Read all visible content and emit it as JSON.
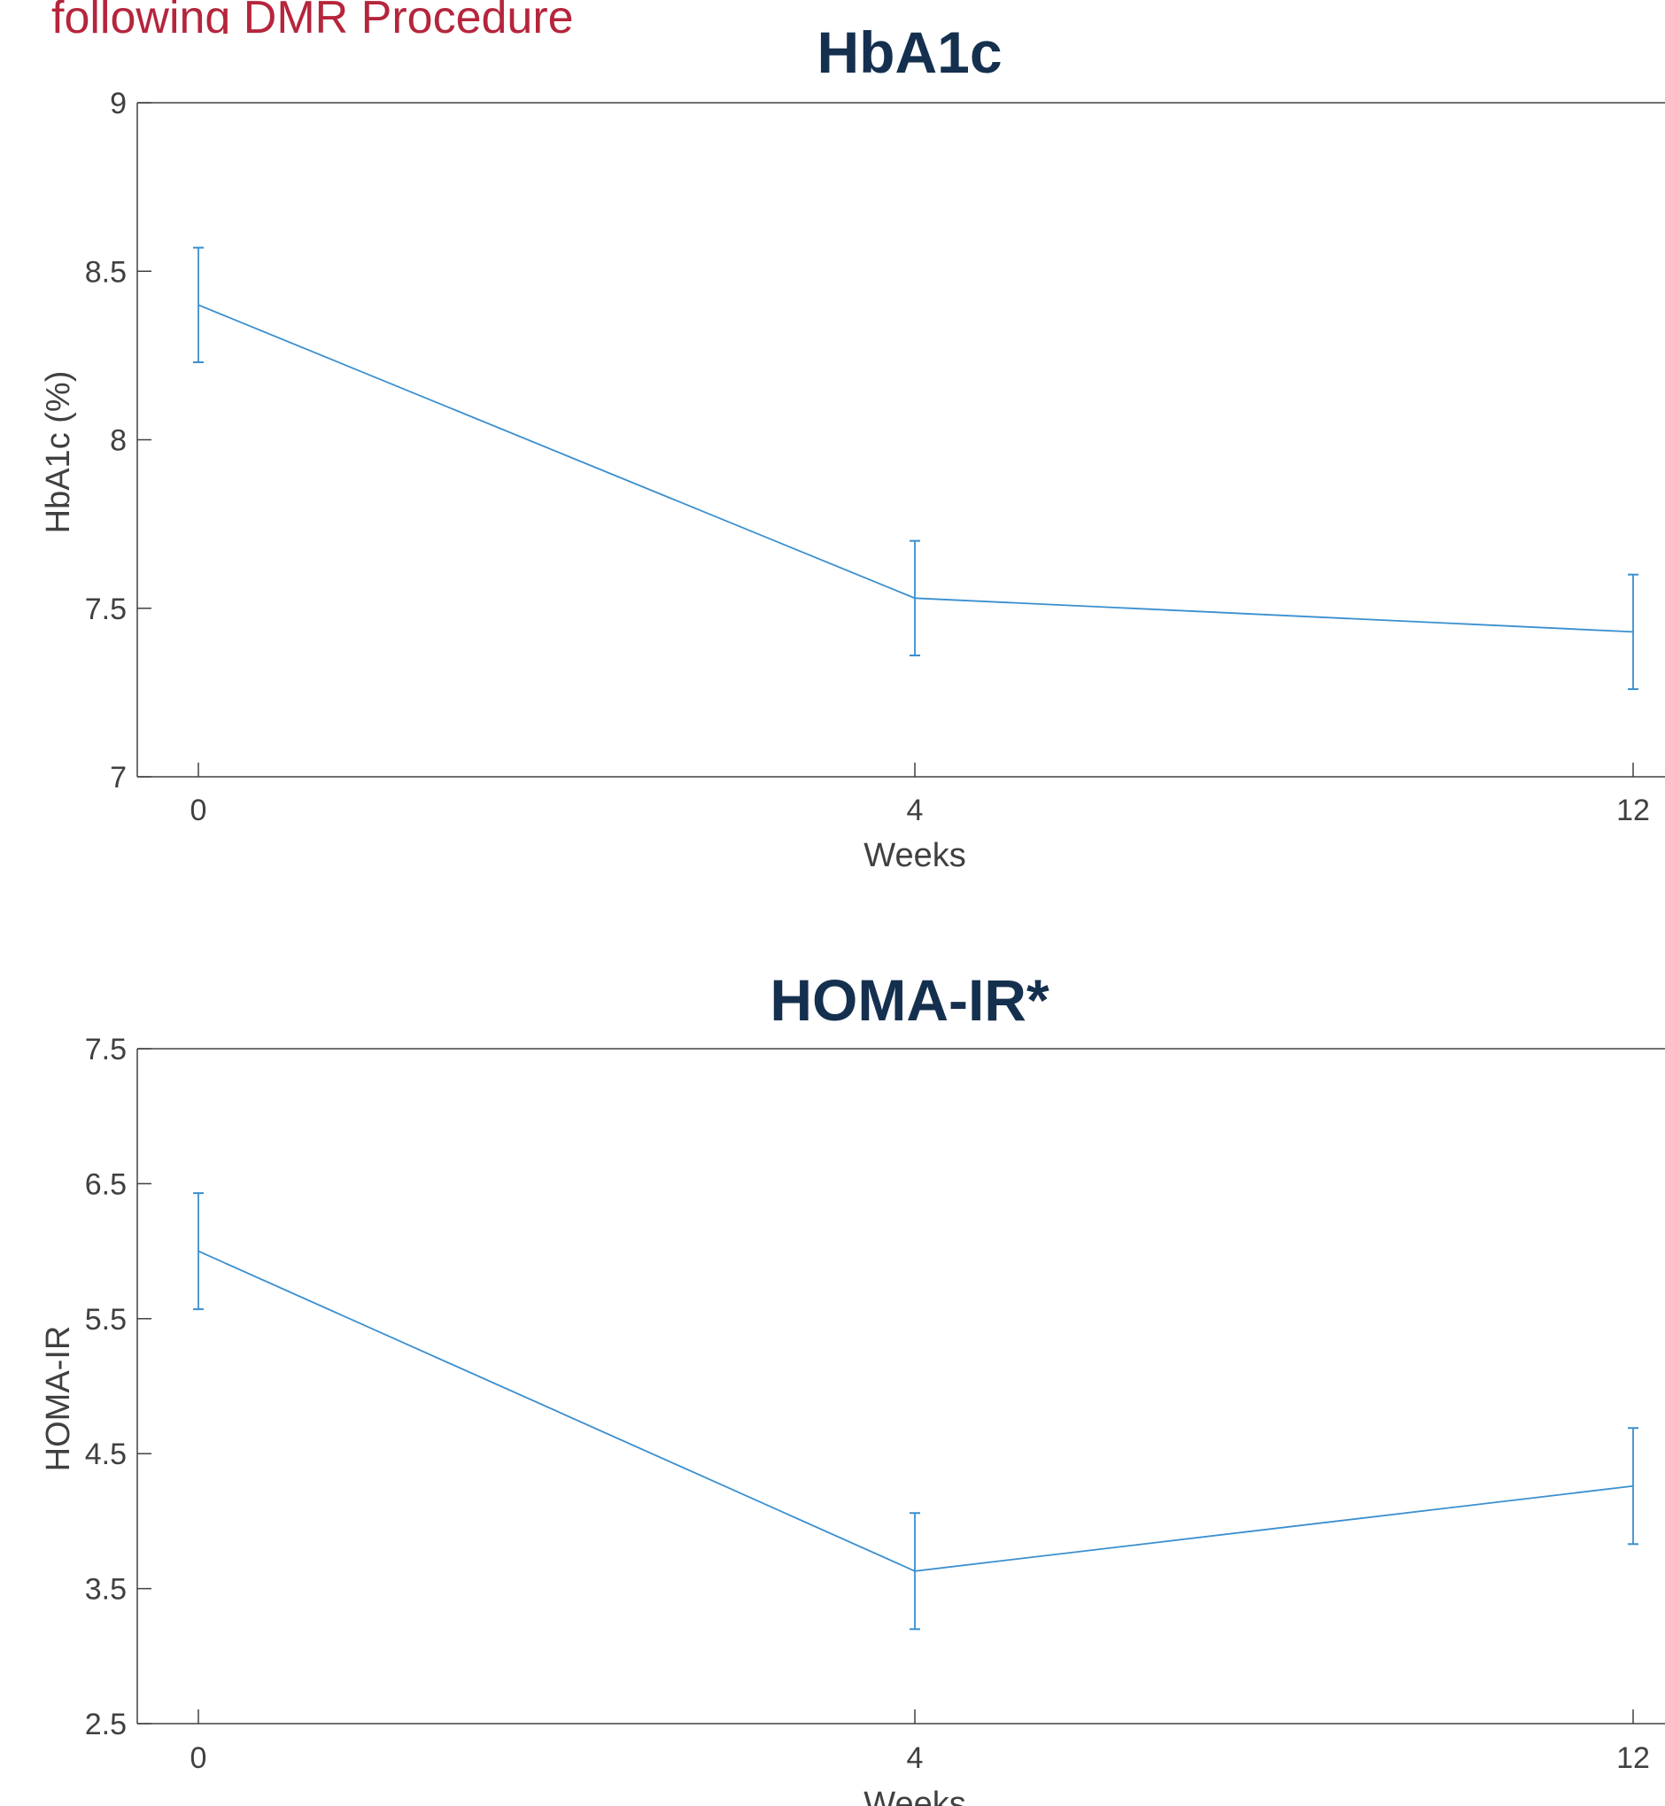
{
  "header": {
    "text": "following DMR Procedure"
  },
  "colors": {
    "line": "#3a8fcf",
    "axis": "#404040",
    "title": "#15304f",
    "header": "#b5253c"
  },
  "chart_data": [
    {
      "type": "line",
      "title": "HbA1c",
      "xlabel": "Weeks",
      "ylabel": "HbA1c (%)",
      "categories": [
        "0",
        "4",
        "12"
      ],
      "ylim": [
        7,
        9
      ],
      "yticks": [
        "7",
        "7.5",
        "8",
        "8.5",
        "9"
      ],
      "series": [
        {
          "values": [
            8.4,
            7.53,
            7.43
          ],
          "err_low": [
            8.23,
            7.36,
            7.26
          ],
          "err_high": [
            8.57,
            7.7,
            7.6
          ]
        }
      ]
    },
    {
      "type": "line",
      "title": "HOMA-IR*",
      "xlabel": "Weeks",
      "ylabel": "HOMA-IR",
      "categories": [
        "0",
        "4",
        "12"
      ],
      "ylim": [
        2.5,
        7.5
      ],
      "yticks": [
        "2.5",
        "3.5",
        "4.5",
        "5.5",
        "6.5",
        "7.5"
      ],
      "series": [
        {
          "values": [
            6.0,
            3.63,
            4.26
          ],
          "err_low": [
            5.57,
            3.2,
            3.83
          ],
          "err_high": [
            6.43,
            4.06,
            4.69
          ]
        }
      ]
    }
  ]
}
